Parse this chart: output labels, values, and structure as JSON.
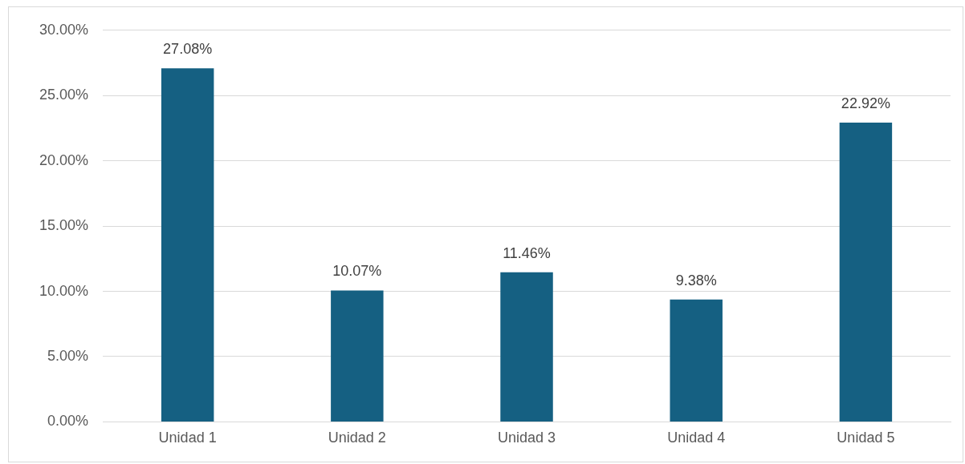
{
  "chart_data": {
    "type": "bar",
    "categories": [
      "Unidad 1",
      "Unidad 2",
      "Unidad 3",
      "Unidad 4",
      "Unidad 5"
    ],
    "values": [
      27.08,
      10.07,
      11.46,
      9.38,
      22.92
    ],
    "value_labels": [
      "27.08%",
      "10.07%",
      "11.46%",
      "9.38%",
      "22.92%"
    ],
    "color": "#156082",
    "ylim": [
      0,
      30
    ],
    "yticks": [
      {
        "value": 0,
        "label": "0.00%"
      },
      {
        "value": 5,
        "label": "5.00%"
      },
      {
        "value": 10,
        "label": "10.00%"
      },
      {
        "value": 15,
        "label": "15.00%"
      },
      {
        "value": 20,
        "label": "20.00%"
      },
      {
        "value": 25,
        "label": "25.00%"
      },
      {
        "value": 30,
        "label": "30.00%"
      }
    ],
    "grid": "y"
  }
}
